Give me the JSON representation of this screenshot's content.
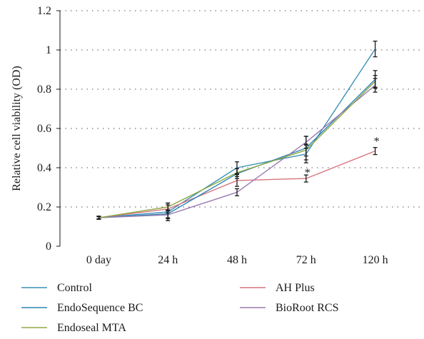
{
  "chart_data": {
    "type": "line",
    "categories": [
      "0 day",
      "24 h",
      "48 h",
      "72 h",
      "120 h"
    ],
    "ylabel": "Relative cell viability (OD)",
    "xlabel": "",
    "ylim": [
      0,
      1.2
    ],
    "yticks": [
      0,
      0.2,
      0.4,
      0.6,
      0.8,
      1,
      1.2
    ],
    "ytick_labels": [
      "0",
      "0.2",
      "0.4",
      "0.6",
      "0.8",
      "1",
      "1.2"
    ],
    "grid": "horizontal dotted",
    "legend_placement": "bottom",
    "series": [
      {
        "name": "Control",
        "color": "#3a8fb7",
        "values": [
          0.145,
          0.175,
          0.4,
          0.47,
          1.005
        ],
        "errors": [
          0.008,
          0.045,
          0.03,
          0.045,
          0.04
        ]
      },
      {
        "name": "AH Plus",
        "color": "#d9737d",
        "values": [
          0.145,
          0.19,
          0.335,
          0.345,
          0.485
        ],
        "errors": [
          0.006,
          0.02,
          0.03,
          0.018,
          0.018
        ]
      },
      {
        "name": "EndoSequence BC",
        "color": "#2b86b5",
        "values": [
          0.145,
          0.165,
          0.37,
          0.5,
          0.85
        ],
        "errors": [
          0.008,
          0.02,
          0.025,
          0.06,
          0.045
        ]
      },
      {
        "name": "BioRoot RCS",
        "color": "#9a7bb0",
        "values": [
          0.145,
          0.16,
          0.275,
          0.53,
          0.82
        ],
        "errors": [
          0.006,
          0.02,
          0.018,
          0.03,
          0.035
        ]
      },
      {
        "name": "Endoseal MTA",
        "color": "#8fa845",
        "values": [
          0.145,
          0.2,
          0.375,
          0.49,
          0.84
        ],
        "errors": [
          0.006,
          0.02,
          0.02,
          0.03,
          0.03
        ]
      }
    ],
    "annotations": [
      {
        "text": "*",
        "category": "72 h",
        "y": 0.385
      },
      {
        "text": "*",
        "category": "120 h",
        "y": 0.545
      }
    ]
  }
}
